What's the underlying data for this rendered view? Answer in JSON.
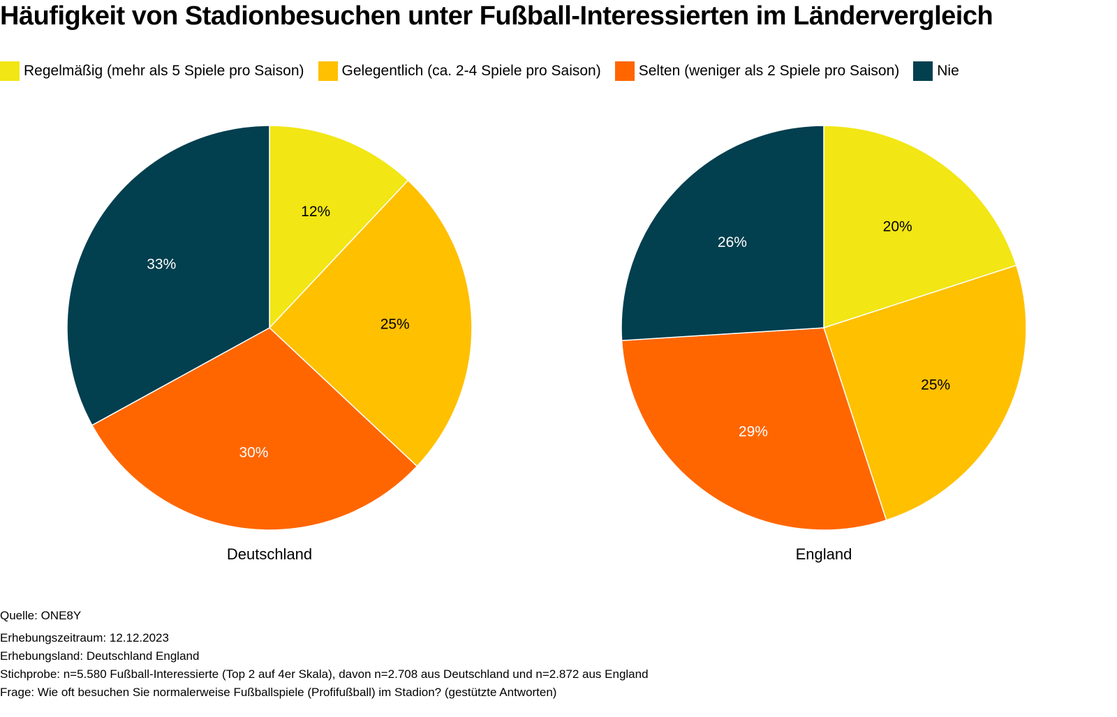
{
  "chart_data": {
    "type": "pie",
    "title": "Häufigkeit von Stadionbesuchen unter Fußball-Interessierten im Ländervergleich",
    "legend_position": "top",
    "categories": [
      "Regelmäßig (mehr als 5 Spiele pro Saison)",
      "Gelegentlich (ca. 2-4 Spiele pro Saison)",
      "Selten (weniger als 2 Spiele pro Saison)",
      "Nie"
    ],
    "colors": [
      "#f2e614",
      "#ffc000",
      "#ff6600",
      "#023f4f"
    ],
    "label_colors": [
      "#000000",
      "#000000",
      "#ffffff",
      "#ffffff"
    ],
    "pies": [
      {
        "name": "Deutschland",
        "values": [
          12,
          25,
          30,
          33
        ],
        "labels": [
          "12%",
          "25%",
          "30%",
          "33%"
        ]
      },
      {
        "name": "England",
        "values": [
          20,
          25,
          29,
          26
        ],
        "labels": [
          "20%",
          "25%",
          "29%",
          "26%"
        ]
      }
    ]
  },
  "footer": {
    "source": "Quelle: ONE8Y",
    "period": "Erhebungszeitraum: 12.12.2023",
    "country": "Erhebungsland: Deutschland England",
    "sample": "Stichprobe: n=5.580 Fußball-Interessierte (Top 2 auf 4er Skala), davon n=2.708 aus Deutschland und n=2.872 aus England",
    "question": "Frage: Wie oft besuchen Sie normalerweise Fußballspiele (Profifußball) im Stadion? (gestützte Antworten)"
  }
}
